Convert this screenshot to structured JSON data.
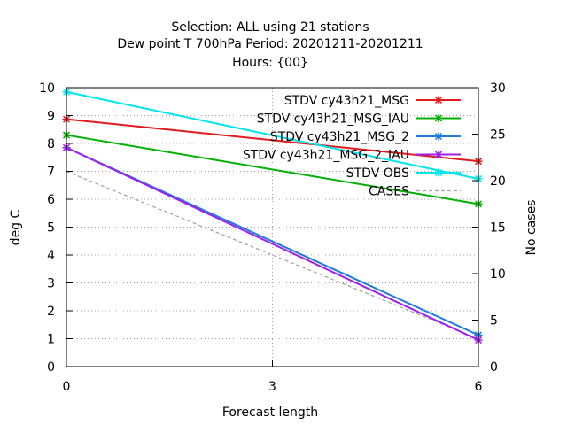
{
  "title_lines": [
    "Selection: ALL using    21 stations",
    "Dew point T 700hPa   Period: 20201211-20201211",
    "Hours: {00}"
  ],
  "chart_data": {
    "type": "line",
    "xlabel": "Forecast length",
    "ylabel": "deg C",
    "y2label": "No cases",
    "x_ticks": [
      "0",
      "3",
      "6"
    ],
    "y_ticks": [
      "0",
      "1",
      "2",
      "3",
      "4",
      "5",
      "6",
      "7",
      "8",
      "9",
      "10"
    ],
    "y2_ticks": [
      "0",
      "5",
      "10",
      "15",
      "20",
      "25",
      "30"
    ],
    "xlim": [
      0,
      6
    ],
    "ylim": [
      0,
      10
    ],
    "y2lim": [
      0,
      30
    ],
    "grid": true,
    "legend_position": "top-right",
    "x": [
      0,
      6
    ],
    "series": [
      {
        "name": "STDV cy43h21_MSG",
        "axis": "y",
        "values": [
          8.87,
          7.36
        ],
        "color": "#e41a1c",
        "marker": "cross"
      },
      {
        "name": "STDV cy43h21_MSG_IAU",
        "axis": "y",
        "values": [
          8.3,
          5.83
        ],
        "color": "#00b000",
        "marker": "cross"
      },
      {
        "name": "STDV cy43h21_MSG_2",
        "axis": "y",
        "values": [
          7.85,
          1.13
        ],
        "color": "#1e7be0",
        "marker": "cross"
      },
      {
        "name": "STDV cy43h21_MSG_2_IAU",
        "axis": "y",
        "values": [
          7.85,
          0.95
        ],
        "color": "#a020f0",
        "marker": "cross"
      },
      {
        "name": "STDV OBS",
        "axis": "y",
        "values": [
          9.85,
          6.73
        ],
        "color": "#00e5ee",
        "marker": "cross"
      },
      {
        "name": "CASES",
        "axis": "y2",
        "values": [
          21,
          3
        ],
        "color": "#a0a0a0",
        "marker": "none",
        "dash": true
      }
    ]
  }
}
